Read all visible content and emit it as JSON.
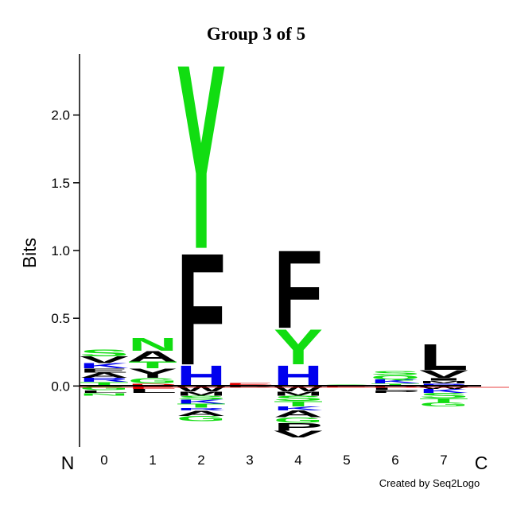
{
  "chart_data": {
    "type": "logo",
    "title": "Group 3 of 5",
    "y_label": "Bits",
    "start_label": "N",
    "end_label": "C",
    "credit": "Created by Seq2Logo",
    "ylim": [
      -0.45,
      2.45
    ],
    "yticks": [
      {
        "value": 0,
        "label": "0.0"
      },
      {
        "value": 0.5,
        "label": "0.5"
      },
      {
        "value": 1,
        "label": "1.0"
      },
      {
        "value": 1.5,
        "label": "1.5"
      },
      {
        "value": 2,
        "label": "2.0"
      }
    ],
    "categories": [
      "0",
      "1",
      "2",
      "3",
      "4",
      "5",
      "6",
      "7"
    ],
    "positions": [
      {
        "positive": [
          {
            "letter": "T",
            "value": 0.03,
            "color": "#11dd11"
          },
          {
            "letter": "R",
            "value": 0.03,
            "color": "#0000ee"
          },
          {
            "letter": "A",
            "value": 0.04,
            "color": "#000000"
          },
          {
            "letter": "E",
            "value": 0.03,
            "color": "#000000"
          },
          {
            "letter": "K",
            "value": 0.04,
            "color": "#0000ee"
          },
          {
            "letter": "V",
            "value": 0.05,
            "color": "#000000"
          },
          {
            "letter": "S",
            "value": 0.05,
            "color": "#11dd11"
          }
        ],
        "negative": [
          {
            "letter": "G",
            "value": -0.03,
            "color": "#11dd11"
          },
          {
            "letter": "L",
            "value": -0.02,
            "color": "#000000"
          },
          {
            "letter": "N",
            "value": -0.02,
            "color": "#11dd11"
          }
        ]
      },
      {
        "positive": [
          {
            "letter": "D",
            "value": 0.02,
            "color": "#dd0000"
          },
          {
            "letter": "G",
            "value": 0.04,
            "color": "#11dd11"
          },
          {
            "letter": "Y",
            "value": 0.07,
            "color": "#000000"
          },
          {
            "letter": "T",
            "value": 0.05,
            "color": "#11dd11"
          },
          {
            "letter": "A",
            "value": 0.08,
            "color": "#000000"
          },
          {
            "letter": "N",
            "value": 0.1,
            "color": "#11dd11"
          }
        ],
        "negative": [
          {
            "letter": "E",
            "value": -0.02,
            "color": "#dd0000"
          },
          {
            "letter": "L",
            "value": -0.03,
            "color": "#000000"
          }
        ]
      },
      {
        "positive": [
          {
            "letter": "H",
            "value": 0.16,
            "color": "#0000ee"
          },
          {
            "letter": "F",
            "value": 0.86,
            "color": "#000000"
          },
          {
            "letter": "Y",
            "value": 1.42,
            "color": "#11dd11"
          }
        ],
        "negative": [
          {
            "letter": "W",
            "value": -0.04,
            "color": "#000000"
          },
          {
            "letter": "M",
            "value": -0.03,
            "color": "#000000"
          },
          {
            "letter": "S",
            "value": -0.03,
            "color": "#11dd11"
          },
          {
            "letter": "K",
            "value": -0.03,
            "color": "#0000ee"
          },
          {
            "letter": "T",
            "value": -0.03,
            "color": "#11dd11"
          },
          {
            "letter": "R",
            "value": -0.02,
            "color": "#0000ee"
          },
          {
            "letter": "A",
            "value": -0.04,
            "color": "#000000"
          },
          {
            "letter": "G",
            "value": -0.04,
            "color": "#11dd11"
          }
        ]
      },
      {
        "positive": [
          {
            "letter": "D",
            "value": 0.01,
            "color": "#dd0000"
          },
          {
            "letter": "E",
            "value": 0.01,
            "color": "#dd0000"
          }
        ],
        "negative": [
          {
            "letter": "P",
            "value": -0.01,
            "color": "#000000"
          }
        ]
      },
      {
        "positive": [
          {
            "letter": "H",
            "value": 0.16,
            "color": "#0000ee"
          },
          {
            "letter": "Y",
            "value": 0.27,
            "color": "#11dd11"
          },
          {
            "letter": "F",
            "value": 0.6,
            "color": "#000000"
          }
        ],
        "negative": [
          {
            "letter": "W",
            "value": -0.04,
            "color": "#000000"
          },
          {
            "letter": "M",
            "value": -0.03,
            "color": "#000000"
          },
          {
            "letter": "S",
            "value": -0.04,
            "color": "#11dd11"
          },
          {
            "letter": "T",
            "value": -0.04,
            "color": "#11dd11"
          },
          {
            "letter": "K",
            "value": -0.03,
            "color": "#0000ee"
          },
          {
            "letter": "A",
            "value": -0.05,
            "color": "#000000"
          },
          {
            "letter": "G",
            "value": -0.04,
            "color": "#11dd11"
          },
          {
            "letter": "P",
            "value": -0.06,
            "color": "#000000"
          },
          {
            "letter": "V",
            "value": -0.05,
            "color": "#000000"
          }
        ]
      },
      {
        "positive": [
          {
            "letter": "Q",
            "value": 0.01,
            "color": "#11dd11"
          }
        ],
        "negative": [
          {
            "letter": "E",
            "value": -0.01,
            "color": "#dd0000"
          }
        ]
      },
      {
        "positive": [
          {
            "letter": "T",
            "value": 0.02,
            "color": "#11dd11"
          },
          {
            "letter": "K",
            "value": 0.03,
            "color": "#0000ee"
          },
          {
            "letter": "Q",
            "value": 0.03,
            "color": "#11dd11"
          },
          {
            "letter": "S",
            "value": 0.03,
            "color": "#11dd11"
          }
        ],
        "negative": [
          {
            "letter": "D",
            "value": -0.01,
            "color": "#dd0000"
          },
          {
            "letter": "L",
            "value": -0.02,
            "color": "#000000"
          },
          {
            "letter": "P",
            "value": -0.02,
            "color": "#000000"
          }
        ]
      },
      {
        "positive": [
          {
            "letter": "R",
            "value": 0.02,
            "color": "#0000ee"
          },
          {
            "letter": "M",
            "value": 0.02,
            "color": "#000000"
          },
          {
            "letter": "I",
            "value": 0.02,
            "color": "#000000"
          },
          {
            "letter": "V",
            "value": 0.06,
            "color": "#000000"
          },
          {
            "letter": "L",
            "value": 0.2,
            "color": "#000000"
          }
        ],
        "negative": [
          {
            "letter": "W",
            "value": -0.02,
            "color": "#000000"
          },
          {
            "letter": "K",
            "value": -0.03,
            "color": "#0000ee"
          },
          {
            "letter": "S",
            "value": -0.04,
            "color": "#11dd11"
          },
          {
            "letter": "T",
            "value": -0.03,
            "color": "#11dd11"
          },
          {
            "letter": "G",
            "value": -0.03,
            "color": "#11dd11"
          }
        ]
      }
    ]
  }
}
